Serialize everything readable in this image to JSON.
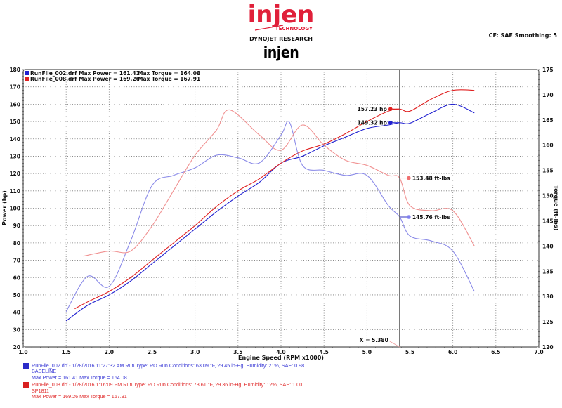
{
  "header": {
    "logo_text": "injen",
    "logo_sub": "TECHNOLOGY",
    "subtitle": "DYNOJET RESEARCH",
    "brand": "injen",
    "correction": "CF: SAE  Smoothing: 5"
  },
  "legend_top": [
    {
      "file": "RunFile_002.drf",
      "text": "RunFile_002.drf Max Power = 161.41",
      "torque_text": "Max Torque = 164.08",
      "color": "#2020d0"
    },
    {
      "file": "RunFile_008.drf",
      "text": "RunFile_008.drf Max Power = 169.26",
      "torque_text": "Max Torque = 167.91",
      "color": "#e02020"
    }
  ],
  "cursor": {
    "label": "X = 5.380",
    "x": 5.38
  },
  "markers": {
    "hp_red": "157.23 hp",
    "hp_blue": "149.32 hp",
    "tq_red": "153.48 ft-lbs",
    "tq_blue": "145.76 ft-lbs"
  },
  "axes": {
    "xlabel": "Engine Speed (RPM x1000)",
    "ylabel_left": "Power (hp)",
    "ylabel_right": "Torque (ft-lbs)",
    "x_ticks": [
      "1.0",
      "1.5",
      "2.0",
      "2.5",
      "3.0",
      "3.5",
      "4.0",
      "4.5",
      "5.0",
      "5.5",
      "6.0",
      "6.5",
      "7.0"
    ],
    "y_left_ticks": [
      "180",
      "170",
      "160",
      "150",
      "140",
      "130",
      "120",
      "110",
      "100",
      "90",
      "80",
      "70",
      "60",
      "50",
      "40",
      "30",
      "20"
    ],
    "y_right_ticks": [
      "175",
      "170",
      "165",
      "160",
      "155",
      "150",
      "145",
      "140",
      "135",
      "130",
      "125",
      "120"
    ]
  },
  "legend_bottom": [
    {
      "line1": "RunFile_002.drf - 1/28/2016 11:27:32 AM  Run Type: RO  Run Conditions: 63.09 °F, 29.45 in-Hg,  Humidity:  21%, SAE: 0.98",
      "line2": "BASELINE",
      "line3": "Max Power = 161.41  Max Torque = 164.08",
      "color": "#3b3bd6"
    },
    {
      "line1": "RunFile_008.drf - 1/28/2016 1:16:09 PM  Run Type: RO  Run Conditions: 73.61 °F, 29.36 in-Hg,  Humidity:  12%, SAE: 1.00",
      "line2": "SP1811",
      "line3": "Max Power = 169.26  Max Torque = 167.91",
      "color": "#e02b2b"
    }
  ],
  "chart_data": {
    "type": "line",
    "title": "DYNOJET RESEARCH",
    "xlabel": "Engine Speed (RPM x1000)",
    "ylabel": "Power (hp)",
    "ylabel_right": "Torque (ft-lbs)",
    "xlim": [
      1.0,
      7.0
    ],
    "ylim": [
      20,
      180
    ],
    "ylim_right": [
      120,
      175
    ],
    "grid": true,
    "legend_position": "top-left",
    "cursor_x": 5.38,
    "series": [
      {
        "name": "RunFile_002.drf Power (BASELINE)",
        "axis": "left",
        "color": "#2020d0",
        "x": [
          1.5,
          1.75,
          2.0,
          2.25,
          2.5,
          2.75,
          3.0,
          3.25,
          3.5,
          3.75,
          4.0,
          4.25,
          4.5,
          4.75,
          5.0,
          5.25,
          5.38,
          5.5,
          5.75,
          6.0,
          6.25
        ],
        "y": [
          35,
          44,
          50,
          58,
          68,
          78,
          88,
          98,
          107,
          115,
          126,
          130,
          136,
          141,
          146,
          148,
          149.3,
          149,
          155,
          160,
          155
        ]
      },
      {
        "name": "RunFile_008.drf Power (SP1811)",
        "axis": "left",
        "color": "#e02020",
        "x": [
          1.6,
          1.75,
          2.0,
          2.25,
          2.5,
          2.75,
          3.0,
          3.25,
          3.5,
          3.75,
          4.0,
          4.25,
          4.5,
          4.75,
          5.0,
          5.25,
          5.38,
          5.5,
          5.75,
          6.0,
          6.25
        ],
        "y": [
          42,
          46,
          52,
          60,
          70,
          80,
          90,
          101,
          110,
          117,
          126,
          133,
          137,
          143,
          150,
          156,
          157.2,
          156,
          163,
          168,
          168
        ]
      },
      {
        "name": "RunFile_002.drf Torque (BASELINE)",
        "axis": "right",
        "color": "#8a8ae8",
        "x": [
          1.5,
          1.75,
          2.0,
          2.25,
          2.5,
          2.75,
          3.0,
          3.25,
          3.5,
          3.75,
          4.0,
          4.1,
          4.25,
          4.5,
          4.75,
          5.0,
          5.25,
          5.38,
          5.5,
          5.75,
          6.0,
          6.25
        ],
        "y": [
          127,
          134,
          132,
          141,
          152,
          154,
          155.5,
          158,
          157.5,
          156.5,
          162,
          164.5,
          156,
          155,
          154,
          154,
          148,
          145.8,
          142,
          141,
          139,
          131
        ]
      },
      {
        "name": "RunFile_008.drf Torque (SP1811)",
        "axis": "right",
        "color": "#f09090",
        "x": [
          1.7,
          2.0,
          2.25,
          2.5,
          2.75,
          3.0,
          3.25,
          3.4,
          3.75,
          4.0,
          4.25,
          4.5,
          4.75,
          5.0,
          5.25,
          5.38,
          5.5,
          5.75,
          6.0,
          6.25
        ],
        "y": [
          138,
          139,
          139,
          144,
          151,
          158,
          163,
          167,
          162,
          159,
          164,
          160,
          157,
          156,
          154,
          153.5,
          148,
          147,
          147,
          140
        ]
      }
    ],
    "annotations": [
      "157.23 hp",
      "149.32 hp",
      "153.48 ft-lbs",
      "145.76 ft-lbs",
      "X = 5.380"
    ]
  }
}
